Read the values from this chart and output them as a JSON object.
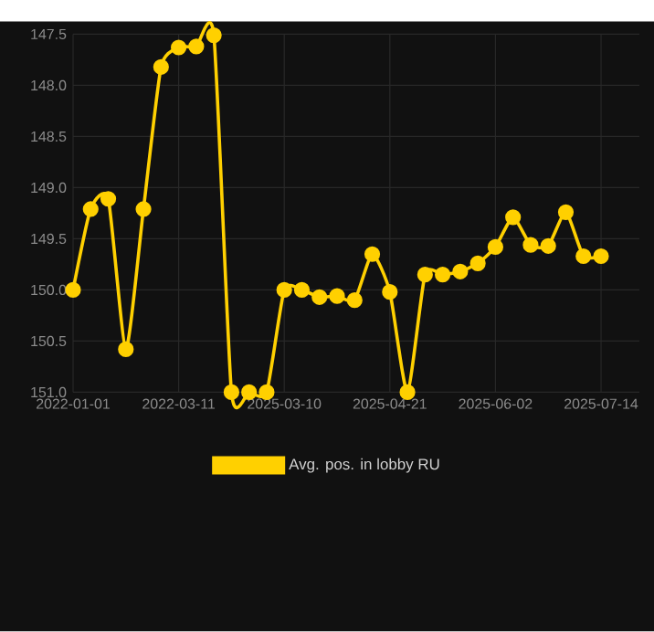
{
  "chart_data": {
    "type": "line",
    "categories": [
      "2022-01-01",
      null,
      null,
      null,
      null,
      null,
      "2022-03-11",
      null,
      null,
      null,
      null,
      null,
      "2025-03-10",
      null,
      null,
      null,
      null,
      null,
      "2025-04-21",
      null,
      null,
      null,
      null,
      null,
      "2025-06-02",
      null,
      null,
      null,
      null,
      null,
      "2025-07-14"
    ],
    "series": [
      {
        "name": "Avg. pos. in lobby RU",
        "color": "#ffd000",
        "values": [
          150.0,
          149.21,
          149.11,
          150.58,
          149.21,
          147.82,
          147.63,
          147.62,
          147.51,
          151.0,
          151.0,
          151.0,
          150.0,
          150.0,
          150.07,
          150.06,
          150.1,
          149.65,
          150.02,
          151.0,
          149.85,
          149.85,
          149.82,
          149.74,
          149.58,
          149.29,
          149.56,
          149.57,
          149.24,
          149.67,
          149.67
        ]
      }
    ],
    "ylim": [
      151.0,
      147.5
    ],
    "yticks": [
      {
        "value": 147.5,
        "label": "147.5"
      },
      {
        "value": 148,
        "label": "148.0"
      },
      {
        "value": 148.5,
        "label": "148.5"
      },
      {
        "value": 149,
        "label": "149.0"
      },
      {
        "value": 149.5,
        "label": "149.5"
      },
      {
        "value": 150,
        "label": "150.0"
      },
      {
        "value": 150.5,
        "label": "150.5"
      },
      {
        "value": 151,
        "label": "151.0"
      }
    ],
    "grid": true,
    "legend": "bottom",
    "marker": "circle",
    "line_style": "solid"
  }
}
